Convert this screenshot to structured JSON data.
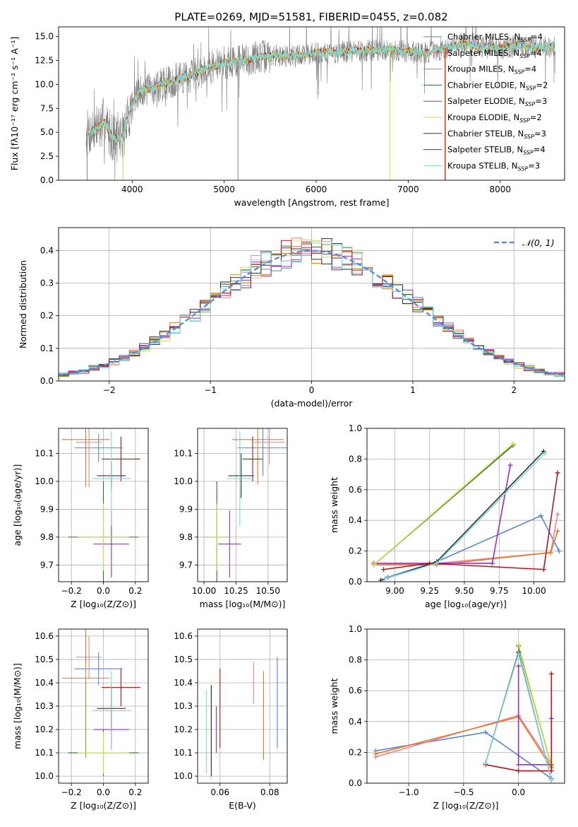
{
  "figure": {
    "title": "PLATE=0269, MJD=51581, FIBERID=0455, z=0.082"
  },
  "colors": {
    "chabrier_miles": "#5b85d6",
    "salpeter_miles": "#e8889c",
    "kroupa_miles": "#e07a28",
    "chabrier_elodie": "#2f6e2f",
    "salpeter_elodie": "#9b2fbf",
    "kroupa_elodie": "#c8e04a",
    "chabrier_stelib": "#333333",
    "salpeter_stelib": "#b01818",
    "kroupa_stelib": "#7fd6dc",
    "observed": "#808080",
    "grid": "#b0b0b0",
    "normal": "#5b8dd6"
  },
  "chart_data": [
    {
      "id": "spectrum",
      "type": "line",
      "xlabel": "wavelength [Angstrom, rest frame]",
      "ylabel": "Flux [fλ10⁻¹⁷ erg cm⁻² s⁻¹ A⁻¹]",
      "xlim": [
        3200,
        8700
      ],
      "ylim": [
        0,
        16
      ],
      "xticks": [
        "4000",
        "5000",
        "6000",
        "7000",
        "8000"
      ],
      "yticks": [
        "0.0",
        "2.5",
        "5.0",
        "7.5",
        "10.0",
        "12.5",
        "15.0"
      ],
      "grid": false,
      "legend_position": "top-right",
      "legend": [
        {
          "label": "Chabrier MILES, N",
          "sub": "SSP",
          "tail": "=4",
          "color": "chabrier_miles"
        },
        {
          "label": "Salpeter MILES, N",
          "sub": "SSP",
          "tail": "=4",
          "color": "salpeter_miles"
        },
        {
          "label": "Kroupa MILES, N",
          "sub": "SSP",
          "tail": "=4",
          "color": "kroupa_miles"
        },
        {
          "label": "Chabrier ELODIE, N",
          "sub": "SSP",
          "tail": "=2",
          "color": "chabrier_elodie"
        },
        {
          "label": "Salpeter ELODIE, N",
          "sub": "SSP",
          "tail": "=3",
          "color": "salpeter_elodie"
        },
        {
          "label": "Kroupa ELODIE, N",
          "sub": "SSP",
          "tail": "=2",
          "color": "kroupa_elodie"
        },
        {
          "label": "Chabrier STELIB, N",
          "sub": "SSP",
          "tail": "=3",
          "color": "chabrier_stelib"
        },
        {
          "label": "Salpeter STELIB, N",
          "sub": "SSP",
          "tail": "=4",
          "color": "salpeter_stelib"
        },
        {
          "label": "Kroupa STELIB, N",
          "sub": "SSP",
          "tail": "=3",
          "color": "kroupa_stelib"
        }
      ],
      "continuum_x": [
        3500,
        3600,
        3700,
        3800,
        3900,
        4000,
        4100,
        4200,
        4400,
        4600,
        4800,
        5000,
        5200,
        5400,
        5600,
        5800,
        6000,
        6200,
        6400,
        6600,
        6800,
        7000,
        7200,
        7400,
        7600,
        7800,
        8000,
        8200,
        8400
      ],
      "continuum_y": [
        4.8,
        5.3,
        6.0,
        4.3,
        4.6,
        8.0,
        9.4,
        9.5,
        10.2,
        10.8,
        11.6,
        12.2,
        12.5,
        12.9,
        13.0,
        13.0,
        13.3,
        13.3,
        13.5,
        13.5,
        13.6,
        13.4,
        13.3,
        13.8,
        14.2,
        13.9,
        13.8,
        14.0,
        13.9
      ],
      "continuum_xrange": [
        3500,
        8600
      ],
      "vertical_lines": [
        {
          "x": 3510,
          "y0": 0,
          "y1": 5.0,
          "color": "observed"
        },
        {
          "x": 3900,
          "y0": 0,
          "y1": 4.5,
          "color": "kroupa_elodie"
        },
        {
          "x": 5150,
          "y0": 0,
          "y1": 12.0,
          "color": "observed"
        },
        {
          "x": 6800,
          "y0": 0,
          "y1": 14.0,
          "color": "kroupa_elodie"
        },
        {
          "x": 7400,
          "y0": 0,
          "y1": 13.8,
          "color": "salpeter_stelib"
        },
        {
          "x": 7405,
          "y0": 0,
          "y1": 13.8,
          "color": "kroupa_miles"
        }
      ]
    },
    {
      "id": "residuals",
      "type": "line",
      "xlabel": "(data-model)/error",
      "ylabel": "Normed distribution",
      "xlim": [
        -2.5,
        2.5
      ],
      "ylim": [
        0,
        0.47
      ],
      "xticks": [
        "−2",
        "−1",
        "0",
        "1",
        "2"
      ],
      "yticks": [
        "0.0",
        "0.1",
        "0.2",
        "0.3",
        "0.4"
      ],
      "grid": true,
      "legend_position": "top-right",
      "legend": [
        {
          "label": "𝒩(0, 1)",
          "color": "normal",
          "dashed": true
        }
      ],
      "bin_width": 0.1
    },
    {
      "id": "age_vs_z",
      "type": "scatter",
      "xlabel": "Z [log₁₀(Z/Z⊙)]",
      "ylabel": "age  [log₁₀(age/yr)]",
      "xlim": [
        -0.28,
        0.28
      ],
      "ylim": [
        9.64,
        10.19
      ],
      "xticks": [
        "−0.2",
        "0.0",
        "0.2"
      ],
      "yticks": [
        "9.7",
        "9.8",
        "9.9",
        "10.0",
        "10.1"
      ],
      "grid": true,
      "points": [
        {
          "series": "chabrier_miles",
          "x": -0.03,
          "xerr": 0.15,
          "y": 10.12,
          "yerr": 0.05
        },
        {
          "series": "salpeter_miles",
          "x": -0.09,
          "xerr": 0.08,
          "y": 10.14,
          "yerr": 0.16
        },
        {
          "series": "kroupa_miles",
          "x": -0.11,
          "xerr": 0.15,
          "y": 10.15,
          "yerr": 0.17
        },
        {
          "series": "chabrier_elodie",
          "x": 0.0,
          "xerr": 0.22,
          "y": 9.8,
          "yerr": 0.2
        },
        {
          "series": "salpeter_elodie",
          "x": 0.05,
          "xerr": 0.11,
          "y": 9.775,
          "yerr": 0.12
        },
        {
          "series": "kroupa_elodie",
          "x": 0.0,
          "xerr": 0.16,
          "y": 9.8,
          "yerr": 0.12
        },
        {
          "series": "chabrier_stelib",
          "x": 0.05,
          "xerr": 0.09,
          "y": 10.02,
          "yerr": 0.05
        },
        {
          "series": "salpeter_stelib",
          "x": 0.11,
          "xerr": 0.12,
          "y": 10.08,
          "yerr": 0.08
        },
        {
          "series": "kroupa_stelib",
          "x": 0.05,
          "xerr": 0.12,
          "y": 10.01,
          "yerr": 0.17
        }
      ]
    },
    {
      "id": "age_vs_mass",
      "type": "scatter",
      "xlabel": "mass [log₁₀(M/M⊙)]",
      "ylabel": "",
      "xlim": [
        9.95,
        10.65
      ],
      "ylim": [
        9.64,
        10.19
      ],
      "xticks": [
        "10.00",
        "10.25",
        "10.50"
      ],
      "yticks": [
        "9.7",
        "9.8",
        "9.9",
        "10.0",
        "10.1"
      ],
      "grid": true,
      "points": [
        {
          "series": "chabrier_miles",
          "x": 10.46,
          "xerr": 0.2,
          "y": 10.12,
          "yerr": 0.1
        },
        {
          "series": "salpeter_miles",
          "x": 10.51,
          "xerr": 0.12,
          "y": 10.14,
          "yerr": 0.08
        },
        {
          "series": "kroupa_miles",
          "x": 10.42,
          "xerr": 0.2,
          "y": 10.15,
          "yerr": 0.16
        },
        {
          "series": "chabrier_elodie",
          "x": 10.1,
          "xerr": 0.1,
          "y": 9.8,
          "yerr": 0.2
        },
        {
          "series": "salpeter_elodie",
          "x": 10.2,
          "xerr": 0.09,
          "y": 9.775,
          "yerr": 0.12
        },
        {
          "series": "kroupa_elodie",
          "x": 10.1,
          "xerr": 0.1,
          "y": 9.8,
          "yerr": 0.12
        },
        {
          "series": "chabrier_stelib",
          "x": 10.29,
          "xerr": 0.1,
          "y": 10.02,
          "yerr": 0.08
        },
        {
          "series": "salpeter_stelib",
          "x": 10.38,
          "xerr": 0.08,
          "y": 10.08,
          "yerr": 0.08
        },
        {
          "series": "kroupa_stelib",
          "x": 10.28,
          "xerr": 0.1,
          "y": 10.01,
          "yerr": 0.17
        }
      ]
    },
    {
      "id": "weight_vs_age",
      "type": "line",
      "xlabel": "age  [log₁₀(age/yr)]",
      "ylabel": "mass weight",
      "xlim": [
        8.8,
        10.22
      ],
      "ylim": [
        0,
        1
      ],
      "xticks": [
        "9.00",
        "9.25",
        "9.50",
        "9.75",
        "10.00"
      ],
      "yticks": [
        "0.0",
        "0.2",
        "0.4",
        "0.6",
        "0.8",
        "1.0"
      ],
      "grid": true,
      "series": [
        {
          "name": "chabrier_miles",
          "x": [
            8.95,
            9.3,
            10.05,
            10.18
          ],
          "y": [
            0.03,
            0.13,
            0.43,
            0.2
          ]
        },
        {
          "name": "salpeter_miles",
          "x": [
            8.85,
            9.3,
            10.12,
            10.17
          ],
          "y": [
            0.11,
            0.12,
            0.19,
            0.44
          ]
        },
        {
          "name": "kroupa_miles",
          "x": [
            8.85,
            9.3,
            10.12,
            10.17
          ],
          "y": [
            0.11,
            0.11,
            0.19,
            0.33
          ]
        },
        {
          "name": "chabrier_elodie",
          "x": [
            8.85,
            9.85
          ],
          "y": [
            0.11,
            0.89
          ]
        },
        {
          "name": "salpeter_elodie",
          "x": [
            8.85,
            9.7,
            9.83
          ],
          "y": [
            0.12,
            0.12,
            0.76
          ]
        },
        {
          "name": "kroupa_elodie",
          "x": [
            8.85,
            9.85
          ],
          "y": [
            0.11,
            0.9
          ]
        },
        {
          "name": "chabrier_stelib",
          "x": [
            8.9,
            9.3,
            10.07
          ],
          "y": [
            0.01,
            0.13,
            0.85
          ]
        },
        {
          "name": "salpeter_stelib",
          "x": [
            8.92,
            9.25,
            10.07,
            10.17
          ],
          "y": [
            0.08,
            0.12,
            0.08,
            0.71
          ]
        },
        {
          "name": "kroupa_stelib",
          "x": [
            8.93,
            9.3,
            10.08
          ],
          "y": [
            0.02,
            0.12,
            0.84
          ]
        }
      ]
    },
    {
      "id": "mass_vs_z",
      "type": "scatter",
      "xlabel": "Z [log₁₀(Z/Z⊙)]",
      "ylabel": "mass [log₁₀(M/M⊙)]",
      "xlim": [
        -0.28,
        0.28
      ],
      "ylim": [
        9.97,
        10.63
      ],
      "xticks": [
        "−0.2",
        "0.0",
        "0.2"
      ],
      "yticks": [
        "10.0",
        "10.1",
        "10.2",
        "10.3",
        "10.4",
        "10.5",
        "10.6"
      ],
      "grid": true,
      "points": [
        {
          "series": "chabrier_miles",
          "x": -0.03,
          "xerr": 0.15,
          "y": 10.46,
          "yerr": 0.07
        },
        {
          "series": "salpeter_miles",
          "x": -0.09,
          "xerr": 0.08,
          "y": 10.51,
          "yerr": 0.09
        },
        {
          "series": "kroupa_miles",
          "x": -0.11,
          "xerr": 0.15,
          "y": 10.42,
          "yerr": 0.34
        },
        {
          "series": "chabrier_elodie",
          "x": 0.0,
          "xerr": 0.22,
          "y": 10.1,
          "yerr": 0.1
        },
        {
          "series": "salpeter_elodie",
          "x": 0.05,
          "xerr": 0.11,
          "y": 10.2,
          "yerr": 0.08
        },
        {
          "series": "kroupa_elodie",
          "x": 0.0,
          "xerr": 0.16,
          "y": 10.1,
          "yerr": 0.09
        },
        {
          "series": "chabrier_stelib",
          "x": 0.05,
          "xerr": 0.09,
          "y": 10.29,
          "yerr": 0.1
        },
        {
          "series": "salpeter_stelib",
          "x": 0.11,
          "xerr": 0.12,
          "y": 10.38,
          "yerr": 0.08
        },
        {
          "series": "kroupa_stelib",
          "x": 0.05,
          "xerr": 0.12,
          "y": 10.28,
          "yerr": 0.17
        }
      ]
    },
    {
      "id": "ebv",
      "type": "scatter",
      "xlabel": "E(B-V)",
      "ylabel": "",
      "xlim": [
        0.051,
        0.087
      ],
      "ylim": [
        9.97,
        10.63
      ],
      "xticks": [
        "0.06",
        "0.08"
      ],
      "yticks": [
        "10.0",
        "10.1",
        "10.2",
        "10.3",
        "10.4",
        "10.5",
        "10.6"
      ],
      "grid": true,
      "points": [
        {
          "series": "chabrier_miles",
          "x": 0.083,
          "y": 10.315,
          "yerr": 0.195
        },
        {
          "series": "salpeter_miles",
          "x": 0.0735,
          "y": 10.4,
          "yerr": 0.09
        },
        {
          "series": "kroupa_miles",
          "x": 0.0775,
          "y": 10.26,
          "yerr": 0.19
        },
        {
          "series": "chabrier_elodie",
          "x": 0.0565,
          "y": 10.2,
          "yerr": 0.19
        },
        {
          "series": "salpeter_elodie",
          "x": 0.0585,
          "y": 10.2,
          "yerr": 0.1
        },
        {
          "series": "kroupa_elodie",
          "x": 0.0565,
          "y": 10.09,
          "yerr": 0.1
        },
        {
          "series": "chabrier_stelib",
          "x": 0.0565,
          "y": 10.195,
          "yerr": 0.195
        },
        {
          "series": "salpeter_stelib",
          "x": 0.06,
          "y": 10.29,
          "yerr": 0.17
        },
        {
          "series": "kroupa_stelib",
          "x": 0.0545,
          "y": 10.19,
          "yerr": 0.18
        }
      ]
    },
    {
      "id": "weight_vs_z",
      "type": "line",
      "xlabel": "Z [log₁₀(Z/Z⊙)]",
      "ylabel": "mass weight",
      "xlim": [
        -1.38,
        0.42
      ],
      "ylim": [
        0,
        1
      ],
      "xticks": [
        "−1.0",
        "−0.5",
        "0.0"
      ],
      "yticks": [
        "0.0",
        "0.2",
        "0.4",
        "0.6",
        "0.8",
        "1.0"
      ],
      "grid": true,
      "series": [
        {
          "name": "chabrier_miles",
          "x": [
            -1.3,
            -0.3,
            0.3
          ],
          "y": [
            0.21,
            0.33,
            0.03
          ]
        },
        {
          "name": "salpeter_miles",
          "x": [
            -1.3,
            0.0,
            0.3
          ],
          "y": [
            0.17,
            0.44,
            0.12
          ]
        },
        {
          "name": "kroupa_miles",
          "x": [
            -1.3,
            0.0,
            0.3
          ],
          "y": [
            0.19,
            0.43,
            0.1
          ]
        },
        {
          "name": "chabrier_elodie",
          "x": [
            0.0,
            0.3
          ],
          "y": [
            0.89,
            0.11
          ]
        },
        {
          "name": "salpeter_elodie",
          "x": [
            0.0,
            0.0,
            0.3,
            0.3
          ],
          "y": [
            0.76,
            0.12,
            0.12,
            0.42
          ]
        },
        {
          "name": "kroupa_elodie",
          "x": [
            0.0,
            0.3
          ],
          "y": [
            0.9,
            0.11
          ]
        },
        {
          "name": "chabrier_stelib",
          "x": [
            -0.3,
            0.0,
            0.3
          ],
          "y": [
            0.13,
            0.85,
            0.02
          ]
        },
        {
          "name": "salpeter_stelib",
          "x": [
            -0.3,
            0.0,
            0.3,
            0.3
          ],
          "y": [
            0.12,
            0.08,
            0.08,
            0.71
          ]
        },
        {
          "name": "kroupa_stelib",
          "x": [
            -0.3,
            0.0,
            0.3
          ],
          "y": [
            0.13,
            0.84,
            0.02
          ]
        }
      ]
    }
  ]
}
